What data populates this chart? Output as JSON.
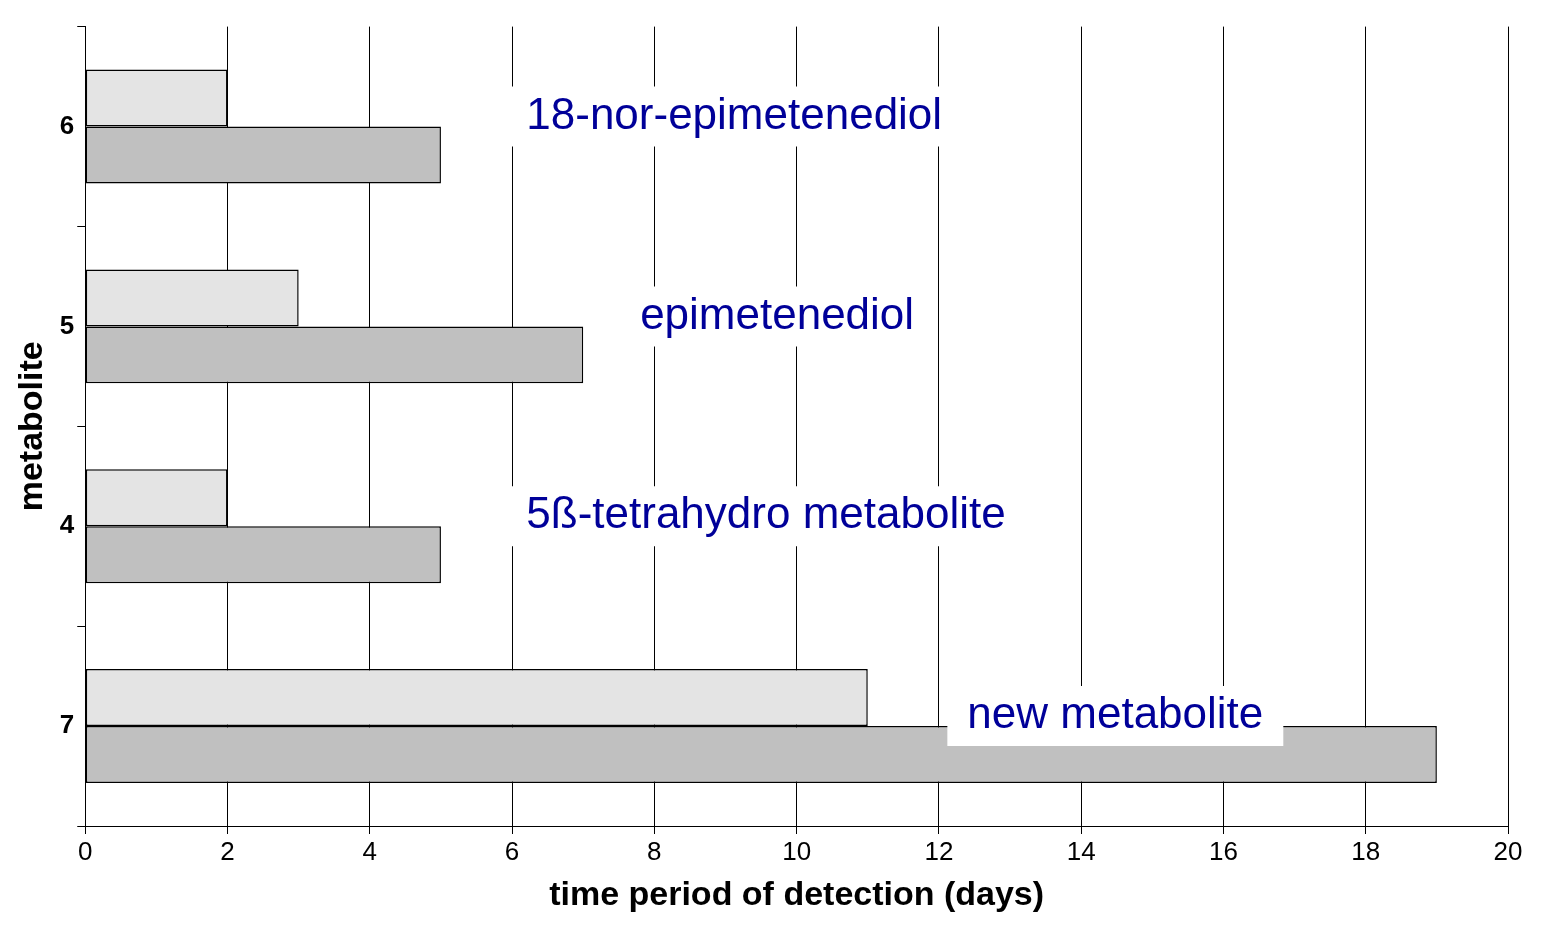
{
  "chart_data": {
    "type": "bar",
    "orientation": "horizontal",
    "xlabel": "time period of detection (days)",
    "ylabel": "metabolite",
    "categories": [
      "6",
      "5",
      "4",
      "7"
    ],
    "series": [
      {
        "color": "#e4e4e4",
        "values": [
          2,
          3,
          2,
          11
        ]
      },
      {
        "color": "#c0c0c0",
        "values": [
          5,
          7,
          5,
          19
        ]
      }
    ],
    "xlim": [
      0,
      20
    ],
    "xticks": [
      0,
      2,
      4,
      6,
      8,
      10,
      12,
      14,
      16,
      18,
      20
    ],
    "grid": "x",
    "legend": false,
    "annotations": [
      "18-nor-epimetenediol",
      "epimetenediol",
      "5ß-tetrahydro metabolite",
      "new metabolite"
    ]
  }
}
